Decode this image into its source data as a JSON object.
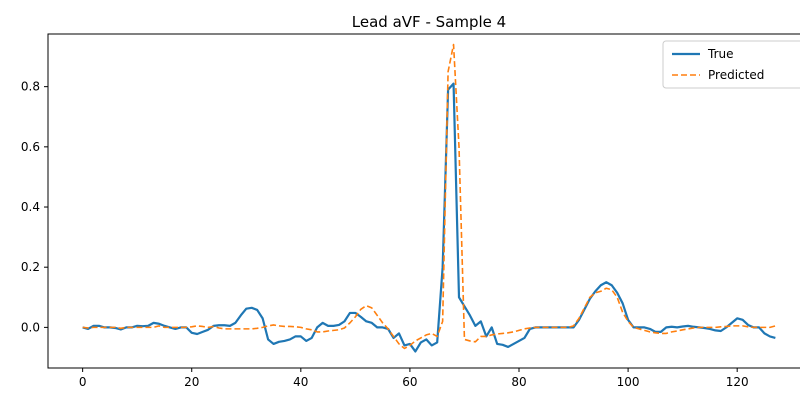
{
  "chart_data": {
    "type": "line",
    "title": "Lead aVF - Sample 4",
    "xlabel": "",
    "ylabel": "",
    "xlim": [
      -6.35,
      133.35
    ],
    "ylim": [
      -0.135,
      0.975
    ],
    "x_ticks": [
      0,
      20,
      40,
      60,
      80,
      100,
      120
    ],
    "y_ticks": [
      0.0,
      0.2,
      0.4,
      0.6,
      0.8
    ],
    "x_tick_labels": [
      "0",
      "20",
      "40",
      "60",
      "80",
      "100",
      "120"
    ],
    "y_tick_labels": [
      "0.0",
      "0.2",
      "0.4",
      "0.6",
      "0.8"
    ],
    "grid": false,
    "legend_position": "top-right",
    "x": [
      0,
      1,
      2,
      3,
      4,
      5,
      6,
      7,
      8,
      9,
      10,
      11,
      12,
      13,
      14,
      15,
      16,
      17,
      18,
      19,
      20,
      21,
      22,
      23,
      24,
      25,
      26,
      27,
      28,
      29,
      30,
      31,
      32,
      33,
      34,
      35,
      36,
      37,
      38,
      39,
      40,
      41,
      42,
      43,
      44,
      45,
      46,
      47,
      48,
      49,
      50,
      51,
      52,
      53,
      54,
      55,
      56,
      57,
      58,
      59,
      60,
      61,
      62,
      63,
      64,
      65,
      66,
      67,
      68,
      69,
      70,
      71,
      72,
      73,
      74,
      75,
      76,
      77,
      78,
      79,
      80,
      81,
      82,
      83,
      84,
      85,
      86,
      87,
      88,
      89,
      90,
      91,
      92,
      93,
      94,
      95,
      96,
      97,
      98,
      99,
      100,
      101,
      102,
      103,
      104,
      105,
      106,
      107,
      108,
      109,
      110,
      111,
      112,
      113,
      114,
      115,
      116,
      117,
      118,
      119,
      120,
      121,
      122,
      123,
      124,
      125,
      126,
      127
    ],
    "series": [
      {
        "name": "True",
        "color": "#1f77b4",
        "style": "solid",
        "values": [
          0.0,
          -0.005,
          0.005,
          0.005,
          0.0,
          0.0,
          -0.002,
          -0.007,
          0.0,
          0.0,
          0.005,
          0.004,
          0.005,
          0.015,
          0.012,
          0.005,
          0.0,
          -0.005,
          0.0,
          0.0,
          -0.018,
          -0.022,
          -0.015,
          -0.008,
          0.005,
          0.007,
          0.007,
          0.005,
          0.015,
          0.04,
          0.062,
          0.065,
          0.058,
          0.03,
          -0.04,
          -0.055,
          -0.048,
          -0.045,
          -0.04,
          -0.03,
          -0.03,
          -0.045,
          -0.035,
          0.0,
          0.015,
          0.005,
          0.005,
          0.008,
          0.02,
          0.048,
          0.048,
          0.035,
          0.02,
          0.015,
          0.0,
          0.0,
          -0.005,
          -0.035,
          -0.02,
          -0.06,
          -0.055,
          -0.08,
          -0.05,
          -0.04,
          -0.06,
          -0.05,
          0.2,
          0.79,
          0.81,
          0.1,
          0.07,
          0.04,
          0.005,
          0.02,
          -0.03,
          0.0,
          -0.055,
          -0.058,
          -0.065,
          -0.055,
          -0.045,
          -0.035,
          -0.005,
          0.0,
          0.0,
          0.0,
          0.0,
          0.0,
          0.0,
          0.0,
          0.0,
          0.025,
          0.06,
          0.095,
          0.12,
          0.14,
          0.15,
          0.14,
          0.115,
          0.08,
          0.025,
          0.0,
          0.0,
          0.0,
          -0.005,
          -0.015,
          -0.015,
          0.0,
          0.002,
          0.0,
          0.003,
          0.005,
          0.002,
          0.0,
          -0.002,
          -0.005,
          -0.01,
          -0.012,
          0.0,
          0.015,
          0.03,
          0.025,
          0.008,
          0.0,
          0.0,
          -0.02,
          -0.03,
          -0.035
        ]
      },
      {
        "name": "Predicted",
        "color": "#ff7f0e",
        "style": "dashed",
        "values": [
          0.0,
          -0.002,
          0.0,
          0.0,
          0.0,
          0.0,
          0.0,
          -0.003,
          0.0,
          0.0,
          0.0,
          0.0,
          0.0,
          0.0,
          0.005,
          0.0,
          0.0,
          0.0,
          0.0,
          0.0,
          0.002,
          0.005,
          0.003,
          0.0,
          0.003,
          -0.002,
          -0.005,
          -0.005,
          -0.005,
          -0.005,
          -0.005,
          -0.005,
          -0.003,
          0.0,
          0.005,
          0.008,
          0.005,
          0.003,
          0.003,
          0.002,
          0.0,
          -0.005,
          -0.008,
          -0.015,
          -0.015,
          -0.012,
          -0.01,
          -0.008,
          -0.002,
          0.015,
          0.035,
          0.06,
          0.072,
          0.065,
          0.04,
          0.015,
          -0.005,
          -0.03,
          -0.055,
          -0.07,
          -0.06,
          -0.045,
          -0.035,
          -0.025,
          -0.02,
          -0.03,
          0.02,
          0.85,
          0.94,
          0.6,
          -0.04,
          -0.045,
          -0.048,
          -0.03,
          -0.03,
          -0.025,
          -0.022,
          -0.02,
          -0.018,
          -0.015,
          -0.01,
          -0.005,
          -0.002,
          0.0,
          0.0,
          0.0,
          0.0,
          0.0,
          0.0,
          0.0,
          0.005,
          0.03,
          0.065,
          0.1,
          0.115,
          0.12,
          0.13,
          0.125,
          0.1,
          0.05,
          0.02,
          0.0,
          -0.005,
          -0.01,
          -0.015,
          -0.018,
          -0.02,
          -0.02,
          -0.015,
          -0.012,
          -0.008,
          -0.005,
          -0.002,
          0.0,
          0.0,
          0.0,
          0.0,
          0.002,
          0.003,
          0.005,
          0.005,
          0.005,
          0.002,
          0.0,
          0.0,
          0.0,
          0.0,
          0.005
        ]
      }
    ]
  }
}
